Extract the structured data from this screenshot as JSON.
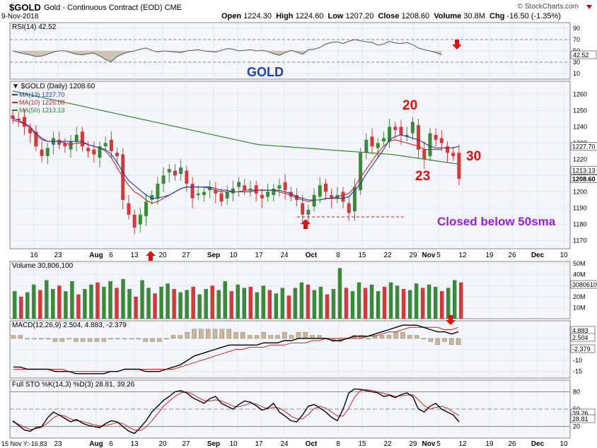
{
  "header": {
    "symbol": "$GOLD",
    "description": "Gold - Continuous Contract (EOD)",
    "exchange": "CME",
    "date": "9-Nov-2018",
    "open_label": "Open",
    "open": "1224.30",
    "high_label": "High",
    "high": "1224.60",
    "low_label": "Low",
    "low": "1207.20",
    "close_label": "Close",
    "close": "1208.60",
    "volume_label": "Volume",
    "volume": "30.8M",
    "chg_label": "Chg",
    "chg": "-16.50 (-1.35%)",
    "site": "© StockCharts.com"
  },
  "colors": {
    "up": "#3a8a3a",
    "down": "#d23a3a",
    "ma13": "#1a3aa0",
    "ma10": "#d42020",
    "ma50": "#2a8a2a",
    "annot": "#e01010",
    "purple": "#9b1ee0",
    "gold_label": "#1d3fb8"
  },
  "chart_data": [
    {
      "panel": "rsi",
      "type": "line",
      "legend": "RSI(14) 42.52",
      "ylim": [
        0,
        100
      ],
      "ticks": [
        10,
        30,
        50,
        70,
        90
      ],
      "last_value": "42.52",
      "values": [
        50,
        47,
        45,
        43,
        40,
        41,
        44,
        48,
        50,
        50,
        47,
        44,
        43,
        45,
        46,
        41,
        35,
        31,
        40,
        45,
        48,
        50,
        53,
        55,
        51,
        48,
        50,
        49,
        48,
        47,
        50,
        51,
        52,
        50,
        49,
        48,
        51,
        54,
        53,
        50,
        51,
        52,
        50,
        51,
        49,
        45,
        42,
        47,
        51,
        48,
        44,
        52,
        53,
        56,
        62,
        65,
        66,
        63,
        67,
        70,
        68,
        66,
        65,
        60,
        62,
        67,
        64,
        63,
        65,
        61,
        55,
        52,
        50,
        47,
        43
      ]
    },
    {
      "panel": "price",
      "type": "candlestick",
      "legend": [
        "$GOLD (Daily) 1208.60",
        "MA(13) 1227.70",
        "MA(10) 1226.08",
        "MA(50) 1213.13"
      ],
      "ylim": [
        1165,
        1268
      ],
      "ticks": [
        1170,
        1180,
        1190,
        1200,
        1210,
        1220,
        1230,
        1240,
        1250,
        1260
      ],
      "x_ticks": [
        "16",
        "23",
        "Aug",
        "6",
        "13",
        "20",
        "27",
        "Sep",
        "10",
        "17",
        "24",
        "Oct",
        "8",
        "15",
        "22",
        "29",
        "Nov",
        "5",
        "12",
        "19",
        "26",
        "Dec",
        "10"
      ],
      "last_values": [
        "1227.70",
        "1213.13",
        "1208.60"
      ],
      "closes": [
        1245,
        1244,
        1240,
        1236,
        1228,
        1222,
        1227,
        1233,
        1229,
        1228,
        1231,
        1235,
        1228,
        1225,
        1223,
        1228,
        1230,
        1225,
        1222,
        1195,
        1186,
        1178,
        1186,
        1194,
        1198,
        1205,
        1210,
        1214,
        1210,
        1215,
        1205,
        1196,
        1199,
        1200,
        1203,
        1199,
        1194,
        1200,
        1202,
        1206,
        1201,
        1202,
        1199,
        1196,
        1200,
        1202,
        1204,
        1201,
        1197,
        1195,
        1186,
        1189,
        1198,
        1204,
        1200,
        1196,
        1198,
        1194,
        1187,
        1203,
        1224,
        1232,
        1228,
        1230,
        1233,
        1240,
        1238,
        1235,
        1235,
        1243,
        1226,
        1220,
        1236,
        1232,
        1230,
        1224,
        1222,
        1208
      ],
      "ma13": [
        1245,
        1244,
        1242,
        1240,
        1236,
        1233,
        1231,
        1231,
        1231,
        1231,
        1231,
        1231,
        1231,
        1229,
        1228,
        1227,
        1226,
        1223,
        1218,
        1212,
        1207,
        1204,
        1201,
        1198,
        1196,
        1196,
        1197,
        1198,
        1200,
        1202,
        1203,
        1203,
        1203,
        1203,
        1203,
        1202,
        1201,
        1201,
        1200,
        1200,
        1200,
        1200,
        1201,
        1201,
        1201,
        1201,
        1201,
        1200,
        1199,
        1197,
        1196,
        1195,
        1195,
        1195,
        1196,
        1196,
        1196,
        1196,
        1197,
        1201,
        1205,
        1211,
        1216,
        1221,
        1226,
        1232,
        1234,
        1235,
        1234,
        1233,
        1232,
        1230,
        1228,
        1227,
        1227,
        1227,
        1227,
        1228
      ],
      "ma10": [
        1244,
        1243,
        1242,
        1239,
        1235,
        1232,
        1231,
        1231,
        1231,
        1230,
        1229,
        1230,
        1230,
        1229,
        1228,
        1227,
        1225,
        1221,
        1215,
        1209,
        1204,
        1200,
        1198,
        1195,
        1193,
        1194,
        1196,
        1198,
        1200,
        1202,
        1203,
        1203,
        1203,
        1203,
        1202,
        1201,
        1200,
        1200,
        1200,
        1200,
        1201,
        1201,
        1201,
        1201,
        1201,
        1201,
        1200,
        1199,
        1198,
        1196,
        1195,
        1194,
        1195,
        1195,
        1196,
        1196,
        1197,
        1198,
        1199,
        1203,
        1209,
        1214,
        1219,
        1224,
        1228,
        1231,
        1232,
        1231,
        1230,
        1229,
        1228,
        1226,
        1226,
        1226,
        1226
      ]
    },
    {
      "panel": "volume",
      "type": "bar",
      "legend": "Volume 30,806,100",
      "ticks": [
        "10M",
        "20M",
        "30M",
        "40M",
        "50M"
      ],
      "ylim": [
        0,
        52
      ],
      "last_value": "30806100",
      "values_millions": [
        25,
        20,
        24,
        31,
        26,
        35,
        27,
        30,
        25,
        34,
        22,
        27,
        31,
        33,
        29,
        34,
        28,
        36,
        27,
        20,
        35,
        28,
        23,
        29,
        32,
        27,
        24,
        26,
        29,
        22,
        27,
        30,
        26,
        34,
        25,
        31,
        28,
        29,
        24,
        30,
        26,
        23,
        28,
        21,
        28,
        33,
        31,
        26,
        29,
        22,
        27,
        46,
        28,
        25,
        33,
        28,
        31,
        25,
        29,
        33,
        30,
        27,
        26,
        32,
        28,
        31,
        29,
        25,
        28,
        35,
        33
      ]
    },
    {
      "panel": "macd",
      "type": "line+histogram",
      "legend": "MACD(12,26,9) 2.504, 4.883, -2.379",
      "ticks": [
        -15,
        -10,
        -5,
        0
      ],
      "last_values": [
        "4.883",
        "2.504",
        "-2.379"
      ],
      "macd": [
        -13,
        -13,
        -14,
        -14,
        -14,
        -14,
        -15,
        -15,
        -15,
        -16,
        -16,
        -16,
        -16,
        -16,
        -15,
        -15,
        -14,
        -14,
        -14,
        -15,
        -15,
        -15,
        -14,
        -13,
        -12,
        -10,
        -8,
        -7,
        -6,
        -5,
        -4,
        -3,
        -3,
        -3,
        -3,
        -3,
        -2,
        -2,
        -2,
        -1,
        -1,
        0,
        0,
        0,
        0,
        0,
        -1,
        -1,
        0,
        1,
        1,
        1,
        2,
        3,
        4,
        5,
        6,
        6,
        6,
        5,
        4,
        3,
        3,
        2,
        3
      ],
      "signal": [
        -14,
        -14,
        -14,
        -14,
        -14,
        -14,
        -14,
        -14,
        -15,
        -15,
        -15,
        -15,
        -15,
        -15,
        -15,
        -15,
        -14,
        -14,
        -14,
        -14,
        -14,
        -14,
        -14,
        -14,
        -13,
        -12,
        -11,
        -10,
        -9,
        -8,
        -7,
        -6,
        -5,
        -5,
        -4,
        -4,
        -4,
        -3,
        -3,
        -3,
        -2,
        -2,
        -2,
        -1,
        -1,
        0,
        0,
        0,
        0,
        0,
        0,
        1,
        1,
        2,
        3,
        3,
        4,
        5,
        5,
        5,
        5,
        5,
        4,
        4,
        5
      ],
      "hist": [
        1,
        1,
        0,
        0,
        0,
        0,
        -1,
        -1,
        0,
        -1,
        -1,
        -1,
        -1,
        -1,
        0,
        0,
        0,
        0,
        0,
        -1,
        -1,
        -1,
        0,
        1,
        1,
        2,
        3,
        3,
        3,
        3,
        3,
        3,
        2,
        2,
        1,
        1,
        2,
        1,
        1,
        2,
        1,
        2,
        2,
        1,
        1,
        0,
        -1,
        -1,
        0,
        1,
        1,
        0,
        1,
        1,
        1,
        2,
        2,
        1,
        1,
        0,
        -1,
        -2,
        -1,
        -2,
        -2
      ]
    },
    {
      "panel": "sto",
      "type": "line",
      "legend": "Full STO %K(14,3) %D(3) 28.81, 39.26",
      "ticks": [
        20,
        50,
        80
      ],
      "last_values": [
        "39.26",
        "28.81"
      ],
      "k": [
        30,
        22,
        14,
        12,
        18,
        20,
        35,
        45,
        40,
        34,
        28,
        32,
        26,
        22,
        20,
        18,
        25,
        30,
        28,
        20,
        12,
        8,
        18,
        30,
        45,
        55,
        65,
        72,
        80,
        82,
        78,
        70,
        65,
        60,
        68,
        72,
        60,
        55,
        50,
        58,
        64,
        62,
        56,
        48,
        52,
        60,
        45,
        38,
        30,
        28,
        40,
        55,
        58,
        52,
        45,
        36,
        30,
        50,
        78,
        85,
        84,
        82,
        80,
        78,
        72,
        74,
        70,
        75,
        78,
        72,
        50,
        45,
        55,
        60,
        50,
        45,
        40,
        28
      ],
      "d": [
        28,
        24,
        19,
        15,
        16,
        19,
        26,
        35,
        40,
        38,
        33,
        30,
        29,
        26,
        23,
        21,
        22,
        24,
        27,
        25,
        19,
        14,
        13,
        19,
        30,
        42,
        55,
        64,
        72,
        78,
        80,
        76,
        70,
        65,
        64,
        66,
        64,
        60,
        55,
        54,
        57,
        60,
        59,
        54,
        51,
        53,
        52,
        46,
        38,
        33,
        33,
        41,
        51,
        55,
        52,
        45,
        38,
        38,
        52,
        71,
        82,
        84,
        82,
        80,
        77,
        75,
        72,
        73,
        74,
        75,
        66,
        56,
        50,
        53,
        55,
        52,
        45,
        39
      ]
    }
  ],
  "annotations": {
    "gold_label": "GOLD",
    "num_20": "20",
    "num_23": "23",
    "num_30": "30",
    "closed_below": "Closed below 50sma",
    "footer": "15 Nov Y:-16.83"
  }
}
